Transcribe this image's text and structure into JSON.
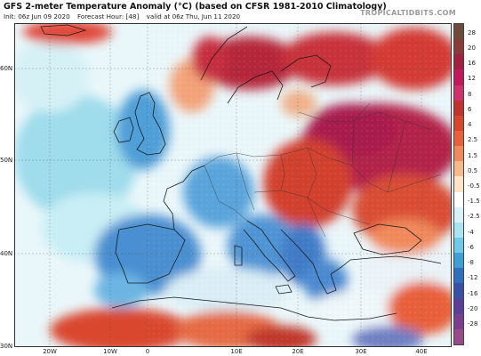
{
  "header": {
    "title": "GFS 2-meter Temperature Anomaly (°C) (based on CFSR 1981-2010 Climatology)",
    "init": "Init: 06z Jun 09 2020",
    "forecast_hour": "Forecast Hour: [48]",
    "valid": "valid at 06z Thu, Jun 11 2020",
    "brand": "TROPICALTIDBITS.COM"
  },
  "map": {
    "lat_labels": [
      "60N",
      "50N",
      "40N",
      "30N"
    ],
    "lon_labels": [
      "20W",
      "10W",
      "0",
      "10E",
      "20E",
      "30E",
      "40E"
    ]
  },
  "colorbar": {
    "labels": [
      "28",
      "20",
      "16",
      "12",
      "8",
      "6",
      "4",
      "2.5",
      "1.5",
      "0.5",
      "-0.5",
      "-1.5",
      "-2.5",
      "-4",
      "-6",
      "-8",
      "-12",
      "-16",
      "-20",
      "-28"
    ],
    "colors": [
      "#6e4a3b",
      "#8b3a3a",
      "#a31f3f",
      "#c2185b",
      "#d0306d",
      "#c1332d",
      "#d9472b",
      "#e8613a",
      "#f08a5b",
      "#f7b98a",
      "#fde3c8",
      "#ffffff",
      "#d9f2f7",
      "#a9e4f1",
      "#6fc9e8",
      "#3c9fd6",
      "#2f6fbf",
      "#3a4fa6",
      "#5b3d9a",
      "#7b3d8f",
      "#9a4a8a"
    ]
  }
}
